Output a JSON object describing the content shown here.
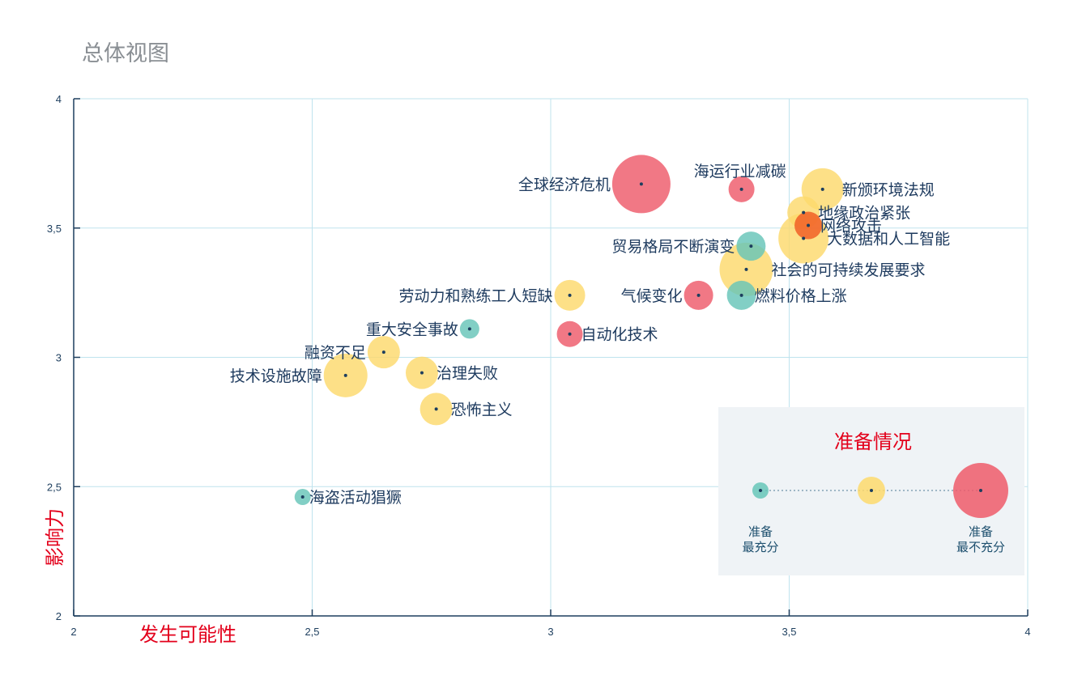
{
  "chart_data": {
    "type": "scatter",
    "title": "总体视图",
    "xlabel": "发生可能性",
    "ylabel": "影响力",
    "xlim": [
      2,
      4
    ],
    "ylim": [
      2,
      4
    ],
    "x_ticks": [
      "2",
      "2,5",
      "3",
      "3,5",
      "4"
    ],
    "y_ticks": [
      "2",
      "2,5",
      "3",
      "3,5",
      "4"
    ],
    "grid": true,
    "colors": {
      "most": "#66c5b8",
      "medium": "#fdd96c",
      "least": "#ee5a6a",
      "orange": "#f05a23",
      "axis": "#1d3e5e",
      "grid": "#bfe3ee",
      "label": "#1d3a5e"
    },
    "points": [
      {
        "label": "全球经济危机",
        "x": 3.19,
        "y": 3.67,
        "preparedness": "least",
        "size": 36
      },
      {
        "label": "海运行业减碳",
        "x": 3.4,
        "y": 3.65,
        "preparedness": "least",
        "size": 16
      },
      {
        "label": "新颁环境法规",
        "x": 3.57,
        "y": 3.65,
        "preparedness": "medium",
        "size": 26
      },
      {
        "label": "地缘政治紧张",
        "x": 3.53,
        "y": 3.56,
        "preparedness": "medium",
        "size": 20
      },
      {
        "label": "网络攻击",
        "x": 3.54,
        "y": 3.51,
        "preparedness": "orange",
        "size": 17
      },
      {
        "label": "大数据和人工智能",
        "x": 3.53,
        "y": 3.46,
        "preparedness": "medium",
        "size": 31
      },
      {
        "label": "贸易格局不断演变",
        "x": 3.42,
        "y": 3.43,
        "preparedness": "most",
        "size": 18
      },
      {
        "label": "社会的可持续发展要求",
        "x": 3.41,
        "y": 3.34,
        "preparedness": "medium",
        "size": 33
      },
      {
        "label": "燃料价格上涨",
        "x": 3.4,
        "y": 3.24,
        "preparedness": "most",
        "size": 18
      },
      {
        "label": "气候变化",
        "x": 3.31,
        "y": 3.24,
        "preparedness": "least",
        "size": 18
      },
      {
        "label": "劳动力和熟练工人短缺",
        "x": 3.04,
        "y": 3.24,
        "preparedness": "medium",
        "size": 19
      },
      {
        "label": "自动化技术",
        "x": 3.04,
        "y": 3.09,
        "preparedness": "least",
        "size": 16
      },
      {
        "label": "重大安全事故",
        "x": 2.83,
        "y": 3.11,
        "preparedness": "most",
        "size": 12
      },
      {
        "label": "融资不足",
        "x": 2.65,
        "y": 3.02,
        "preparedness": "medium",
        "size": 20
      },
      {
        "label": "技术设施故障",
        "x": 2.57,
        "y": 2.93,
        "preparedness": "medium",
        "size": 27
      },
      {
        "label": "治理失败",
        "x": 2.73,
        "y": 2.94,
        "preparedness": "medium",
        "size": 20
      },
      {
        "label": "恐怖主义",
        "x": 2.76,
        "y": 2.8,
        "preparedness": "medium",
        "size": 20
      },
      {
        "label": "海盗活动猖獗",
        "x": 2.48,
        "y": 2.46,
        "preparedness": "most",
        "size": 10
      }
    ]
  },
  "legend": {
    "title": "准备情况",
    "most_line1": "准备",
    "most_line2": "最充分",
    "least_line1": "准备",
    "least_line2": "最不充分"
  }
}
